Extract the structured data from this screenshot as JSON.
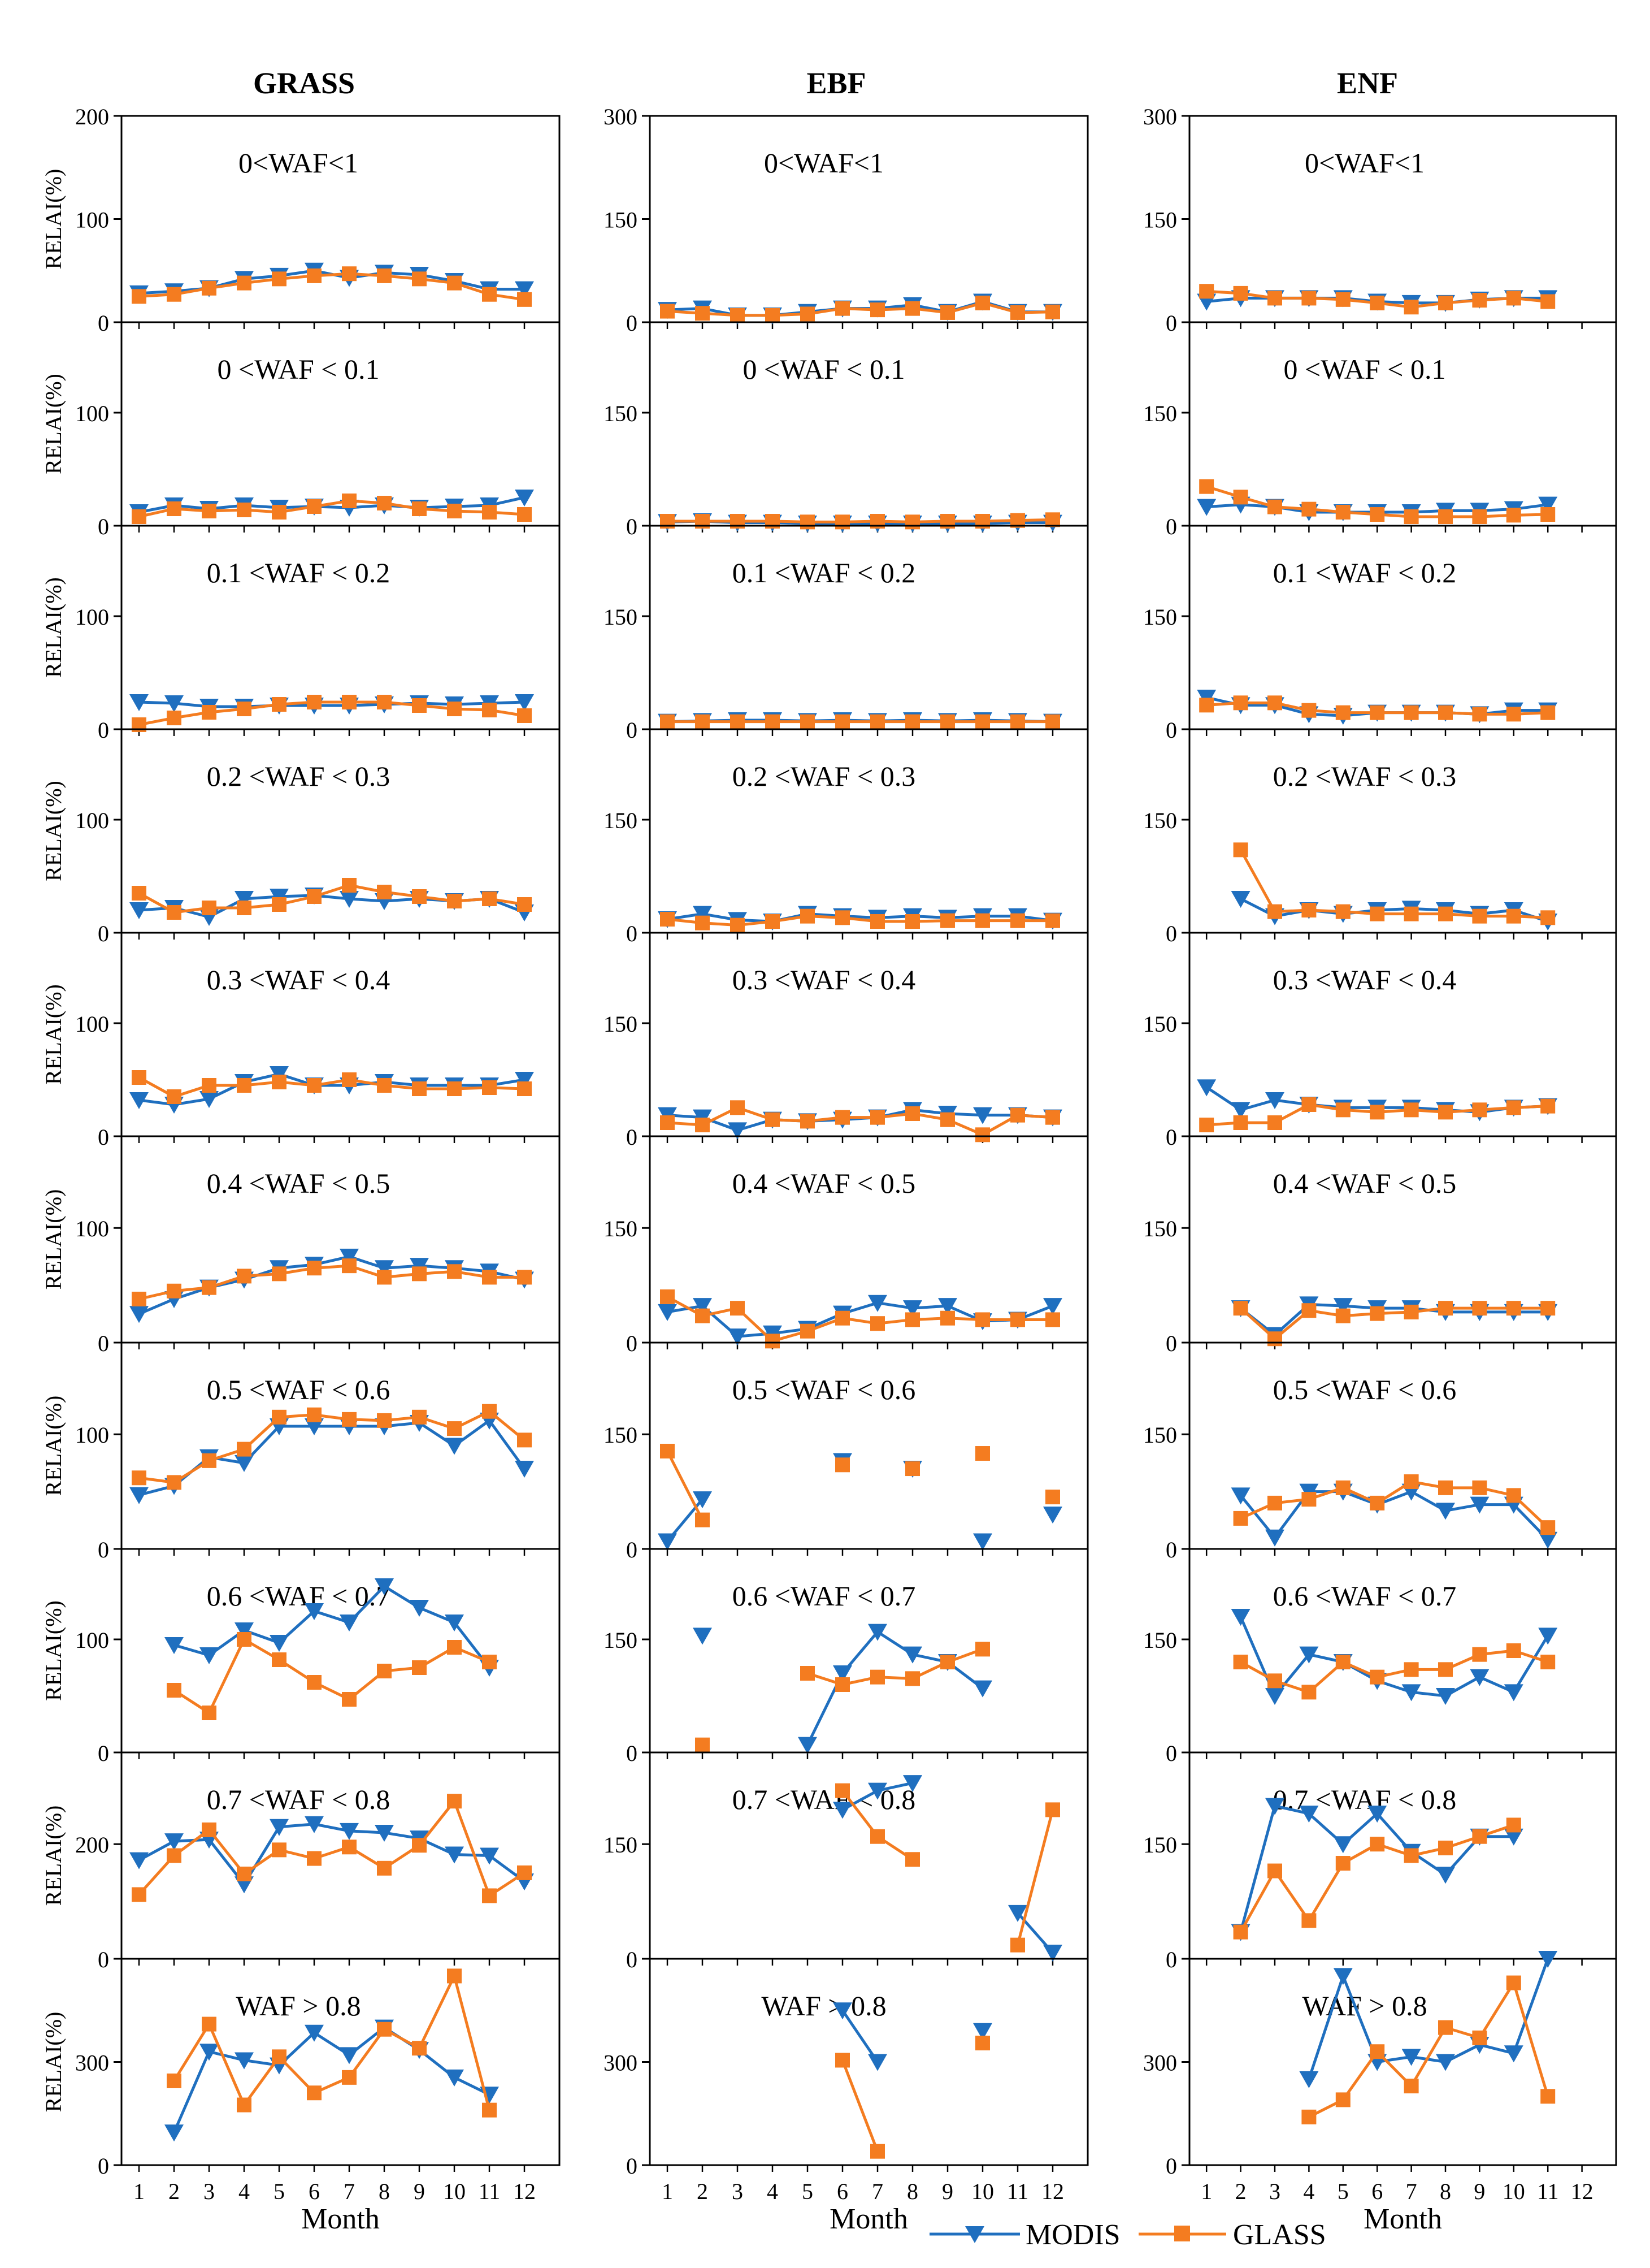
{
  "columns": [
    "GRASS",
    "EBF",
    "ENF"
  ],
  "legend": {
    "modis": "MODIS",
    "glass": "GLASS"
  },
  "colors": {
    "modis": "#1f6fbf",
    "glass": "#f47c20",
    "axis": "#000000"
  },
  "icons": {
    "modis": "triangle-down-icon",
    "glass": "square-icon"
  },
  "chart_data": {
    "type": "line",
    "x": [
      1,
      2,
      3,
      4,
      5,
      6,
      7,
      8,
      9,
      10,
      11,
      12
    ],
    "xlabel": "Month",
    "ylabel": "RELAI(%)",
    "rows": [
      "0<WAF<1",
      "0 <WAF < 0.1",
      "0.1 <WAF < 0.2",
      "0.2 <WAF < 0.3",
      "0.3 <WAF < 0.4",
      "0.4 <WAF < 0.5",
      "0.5 <WAF < 0.6",
      "0.6 <WAF < 0.7",
      "0.7 <WAF < 0.8",
      "WAF > 0.8"
    ],
    "panels": [
      [
        {
          "yticks": [
            0,
            100,
            200
          ],
          "ylim": [
            0,
            200
          ],
          "modis": [
            28,
            30,
            33,
            42,
            45,
            50,
            43,
            48,
            46,
            40,
            32,
            32
          ],
          "glass": [
            25,
            27,
            33,
            38,
            42,
            45,
            47,
            45,
            42,
            38,
            27,
            22
          ]
        },
        {
          "yticks": [
            0,
            100
          ],
          "ylim": [
            0,
            180
          ],
          "modis": [
            12,
            18,
            15,
            18,
            16,
            17,
            16,
            18,
            16,
            17,
            18,
            25
          ],
          "glass": [
            8,
            15,
            13,
            14,
            12,
            17,
            22,
            20,
            15,
            13,
            12,
            10
          ]
        },
        {
          "yticks": [
            0,
            100
          ],
          "ylim": [
            0,
            180
          ],
          "modis": [
            24,
            23,
            20,
            20,
            21,
            21,
            21,
            22,
            23,
            22,
            23,
            24
          ],
          "glass": [
            4,
            10,
            15,
            18,
            22,
            24,
            24,
            24,
            21,
            18,
            17,
            12
          ]
        },
        {
          "yticks": [
            0,
            100
          ],
          "ylim": [
            0,
            180
          ],
          "modis": [
            20,
            22,
            14,
            30,
            32,
            33,
            30,
            28,
            30,
            28,
            30,
            18
          ],
          "glass": [
            35,
            18,
            22,
            22,
            25,
            32,
            42,
            36,
            32,
            28,
            30,
            25
          ]
        },
        {
          "yticks": [
            0,
            100
          ],
          "ylim": [
            0,
            180
          ],
          "modis": [
            32,
            28,
            33,
            48,
            55,
            45,
            45,
            48,
            45,
            45,
            45,
            50
          ],
          "glass": [
            52,
            35,
            45,
            45,
            48,
            45,
            50,
            45,
            42,
            42,
            43,
            42
          ]
        },
        {
          "yticks": [
            0,
            100
          ],
          "ylim": [
            0,
            180
          ],
          "modis": [
            25,
            38,
            48,
            55,
            65,
            68,
            75,
            65,
            67,
            65,
            62,
            55
          ],
          "glass": [
            38,
            45,
            48,
            58,
            60,
            65,
            67,
            57,
            60,
            62,
            57,
            57
          ]
        },
        {
          "yticks": [
            0,
            100
          ],
          "ylim": [
            0,
            180
          ],
          "modis": [
            47,
            55,
            80,
            75,
            107,
            107,
            107,
            107,
            110,
            90,
            112,
            70
          ],
          "glass": [
            62,
            58,
            77,
            87,
            115,
            117,
            113,
            112,
            115,
            105,
            120,
            95
          ]
        },
        {
          "yticks": [
            0,
            100
          ],
          "ylim": [
            0,
            180
          ],
          "modis": [
            null,
            95,
            86,
            108,
            97,
            125,
            115,
            147,
            128,
            115,
            75,
            null
          ],
          "glass": [
            null,
            55,
            35,
            100,
            82,
            62,
            47,
            72,
            75,
            93,
            80,
            null
          ]
        },
        {
          "yticks": [
            0,
            200
          ],
          "ylim": [
            0,
            360
          ],
          "modis": [
            172,
            205,
            208,
            130,
            230,
            235,
            223,
            220,
            210,
            182,
            180,
            135
          ],
          "glass": [
            112,
            180,
            225,
            148,
            190,
            175,
            195,
            158,
            198,
            275,
            110,
            150
          ]
        },
        {
          "yticks": [
            0,
            300
          ],
          "ylim": [
            0,
            600
          ],
          "modis": [
            null,
            95,
            330,
            305,
            290,
            385,
            320,
            400,
            335,
            255,
            205,
            null
          ],
          "glass": [
            null,
            245,
            410,
            175,
            315,
            210,
            255,
            395,
            340,
            550,
            160,
            null
          ]
        }
      ],
      [
        {
          "yticks": [
            0,
            150,
            300
          ],
          "ylim": [
            0,
            300
          ],
          "modis": [
            18,
            20,
            10,
            10,
            15,
            20,
            20,
            25,
            15,
            30,
            15,
            15
          ],
          "glass": [
            16,
            13,
            10,
            10,
            12,
            20,
            18,
            20,
            14,
            28,
            14,
            15
          ]
        },
        {
          "yticks": [
            0,
            150
          ],
          "ylim": [
            0,
            270
          ],
          "modis": [
            5,
            6,
            4,
            4,
            3,
            3,
            3,
            3,
            3,
            3,
            4,
            4
          ],
          "glass": [
            6,
            6,
            6,
            6,
            5,
            5,
            6,
            5,
            6,
            6,
            7,
            8
          ]
        },
        {
          "yticks": [
            0,
            150
          ],
          "ylim": [
            0,
            270
          ],
          "modis": [
            10,
            11,
            12,
            12,
            11,
            12,
            11,
            12,
            11,
            12,
            11,
            10
          ],
          "glass": [
            10,
            10,
            10,
            10,
            10,
            10,
            10,
            10,
            10,
            10,
            10,
            10
          ]
        },
        {
          "yticks": [
            0,
            150
          ],
          "ylim": [
            0,
            270
          ],
          "modis": [
            18,
            25,
            17,
            15,
            25,
            22,
            20,
            22,
            20,
            22,
            22,
            16
          ],
          "glass": [
            18,
            13,
            10,
            15,
            22,
            20,
            15,
            15,
            16,
            16,
            16,
            16
          ]
        },
        {
          "yticks": [
            0,
            150
          ],
          "ylim": [
            0,
            270
          ],
          "modis": [
            28,
            25,
            8,
            22,
            20,
            22,
            25,
            35,
            30,
            28,
            28,
            25
          ],
          "glass": [
            18,
            15,
            38,
            22,
            20,
            25,
            25,
            30,
            22,
            2,
            28,
            25
          ]
        },
        {
          "yticks": [
            0,
            150
          ],
          "ylim": [
            0,
            270
          ],
          "modis": [
            40,
            48,
            8,
            12,
            18,
            38,
            52,
            45,
            48,
            28,
            30,
            48
          ],
          "glass": [
            60,
            35,
            45,
            2,
            15,
            32,
            25,
            30,
            32,
            30,
            30,
            30
          ]
        },
        {
          "yticks": [
            0,
            150
          ],
          "ylim": [
            0,
            270
          ],
          "modis": [
            10,
            65,
            null,
            null,
            null,
            115,
            null,
            105,
            null,
            10,
            null,
            45
          ],
          "glass": [
            128,
            38,
            null,
            null,
            null,
            110,
            null,
            105,
            null,
            125,
            null,
            68
          ]
        },
        {
          "yticks": [
            0,
            150
          ],
          "ylim": [
            0,
            270
          ],
          "modis": [
            null,
            155,
            null,
            null,
            10,
            105,
            160,
            130,
            120,
            85,
            null,
            null
          ],
          "glass": [
            null,
            10,
            null,
            null,
            105,
            90,
            100,
            98,
            120,
            137,
            null,
            null
          ]
        },
        {
          "yticks": [
            0,
            150
          ],
          "ylim": [
            0,
            270
          ],
          "modis": [
            null,
            null,
            null,
            null,
            null,
            195,
            220,
            230,
            null,
            null,
            60,
            8
          ],
          "glass": [
            null,
            null,
            null,
            null,
            null,
            220,
            160,
            130,
            null,
            null,
            18,
            195
          ]
        },
        {
          "yticks": [
            0,
            300
          ],
          "ylim": [
            0,
            600
          ],
          "modis": [
            null,
            null,
            null,
            null,
            null,
            450,
            300,
            null,
            null,
            390,
            null,
            null
          ],
          "glass": [
            null,
            null,
            null,
            null,
            null,
            305,
            40,
            null,
            null,
            355,
            null,
            null
          ]
        }
      ],
      [
        {
          "yticks": [
            0,
            150,
            300
          ],
          "ylim": [
            0,
            300
          ],
          "modis": [
            30,
            35,
            35,
            35,
            35,
            30,
            28,
            28,
            33,
            35,
            35,
            null
          ],
          "glass": [
            45,
            42,
            35,
            35,
            33,
            28,
            22,
            28,
            32,
            35,
            30,
            null
          ]
        },
        {
          "yticks": [
            0,
            150
          ],
          "ylim": [
            0,
            270
          ],
          "modis": [
            25,
            28,
            25,
            18,
            18,
            18,
            18,
            20,
            20,
            22,
            28,
            null
          ],
          "glass": [
            52,
            38,
            25,
            22,
            18,
            15,
            12,
            12,
            12,
            14,
            15,
            null
          ]
        },
        {
          "yticks": [
            0,
            150
          ],
          "ylim": [
            0,
            270
          ],
          "modis": [
            42,
            32,
            32,
            20,
            18,
            22,
            22,
            22,
            20,
            25,
            25,
            null
          ],
          "glass": [
            32,
            35,
            35,
            25,
            22,
            22,
            22,
            22,
            20,
            20,
            22,
            null
          ]
        },
        {
          "yticks": [
            0,
            150
          ],
          "ylim": [
            0,
            270
          ],
          "modis": [
            null,
            45,
            22,
            30,
            25,
            30,
            32,
            30,
            25,
            30,
            15,
            null
          ],
          "glass": [
            null,
            110,
            28,
            30,
            28,
            25,
            25,
            25,
            22,
            22,
            20,
            null
          ]
        },
        {
          "yticks": [
            0,
            150
          ],
          "ylim": [
            0,
            270
          ],
          "modis": [
            65,
            35,
            48,
            42,
            38,
            38,
            38,
            35,
            32,
            38,
            40,
            null
          ],
          "glass": [
            15,
            18,
            18,
            42,
            35,
            32,
            35,
            32,
            35,
            38,
            40,
            null
          ]
        },
        {
          "yticks": [
            0,
            150
          ],
          "ylim": [
            0,
            270
          ],
          "modis": [
            null,
            45,
            10,
            50,
            48,
            45,
            45,
            40,
            40,
            40,
            40,
            null
          ],
          "glass": [
            null,
            45,
            5,
            42,
            35,
            38,
            40,
            45,
            45,
            45,
            45,
            null
          ]
        },
        {
          "yticks": [
            0,
            150
          ],
          "ylim": [
            0,
            270
          ],
          "modis": [
            null,
            70,
            15,
            75,
            75,
            58,
            75,
            50,
            58,
            58,
            12,
            null
          ],
          "glass": [
            null,
            40,
            60,
            65,
            80,
            60,
            88,
            80,
            80,
            70,
            28,
            null
          ]
        },
        {
          "yticks": [
            0,
            150
          ],
          "ylim": [
            0,
            270
          ],
          "modis": [
            null,
            180,
            75,
            130,
            120,
            95,
            80,
            75,
            100,
            80,
            155,
            null
          ],
          "glass": [
            null,
            120,
            95,
            80,
            120,
            100,
            110,
            110,
            130,
            135,
            120,
            null
          ]
        },
        {
          "yticks": [
            0,
            150
          ],
          "ylim": [
            0,
            270
          ],
          "modis": [
            null,
            35,
            200,
            190,
            150,
            190,
            140,
            110,
            160,
            160,
            null,
            null
          ],
          "glass": [
            null,
            35,
            115,
            50,
            125,
            150,
            135,
            145,
            160,
            175,
            null,
            null
          ]
        },
        {
          "yticks": [
            0,
            300
          ],
          "ylim": [
            0,
            600
          ],
          "modis": [
            null,
            null,
            null,
            250,
            550,
            300,
            315,
            300,
            350,
            325,
            600,
            null
          ],
          "glass": [
            null,
            null,
            null,
            140,
            190,
            330,
            230,
            400,
            370,
            530,
            200,
            null
          ]
        }
      ]
    ]
  }
}
